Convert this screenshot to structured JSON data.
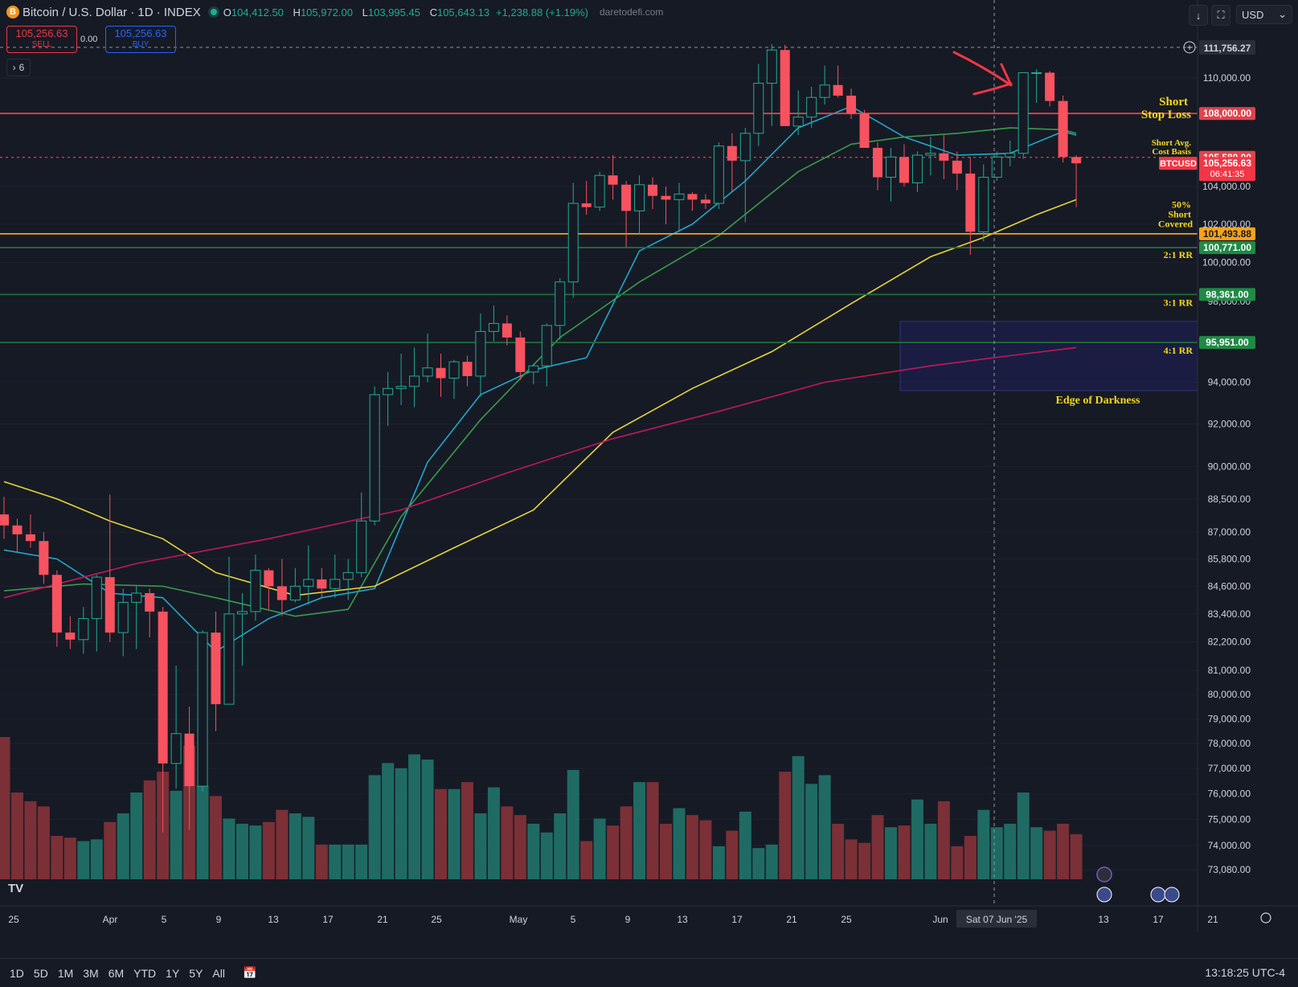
{
  "header": {
    "title": "Bitcoin / U.S. Dollar · 1D · INDEX",
    "coin_icon": "B",
    "open_label": "O",
    "open": "104,412.50",
    "high_label": "H",
    "high": "105,972.00",
    "low_label": "L",
    "low": "103,995.45",
    "close_label": "C",
    "close": "105,643.13",
    "change": "+1,238.88 (+1.19%)",
    "watermark": "daretodefi.com"
  },
  "trade": {
    "sell_price": "105,256.63",
    "sell_label": "SELL",
    "spread": "0.00",
    "buy_price": "105,256.63",
    "buy_label": "BUY"
  },
  "indicator_count": "6",
  "currency_select": "USD",
  "timeframes": [
    "1D",
    "5D",
    "1M",
    "3M",
    "6M",
    "YTD",
    "1Y",
    "5Y",
    "All"
  ],
  "clock": "13:18:25 UTC-4",
  "colors": {
    "bg": "#161a25",
    "up": "#22ab94",
    "down": "#f7525f",
    "ma_cyan": "#22a7c9",
    "ma_green": "#3a9a4d",
    "ma_yellow": "#e6d43c",
    "ma_magenta": "#c2185b",
    "level_red": "#e0434d",
    "level_orange": "#f7a21a",
    "level_green": "#1f6e3a",
    "annot": "#f5d820"
  },
  "chart_data": {
    "type": "candlestick",
    "title": "Bitcoin / U.S. Dollar · 1D · INDEX",
    "x_ticks": [
      "25",
      "Apr",
      "5",
      "9",
      "13",
      "17",
      "21",
      "25",
      "May",
      "5",
      "9",
      "13",
      "17",
      "21",
      "25",
      "Jun",
      "Sat 07 Jun '25",
      "13",
      "17",
      "21"
    ],
    "y_ticks": [
      110000,
      104000,
      102000,
      100000,
      98000,
      94000,
      92000,
      90000,
      88500,
      87000,
      85800,
      84600,
      83400,
      82200,
      81000,
      80000,
      79000,
      78000,
      77000,
      76000,
      75000,
      74000,
      73080
    ],
    "y_tick_labels": [
      "110,000.00",
      "104,000.00",
      "102,000.00",
      "100,000.00",
      "98,000.00",
      "94,000.00",
      "92,000.00",
      "90,000.00",
      "88,500.00",
      "87,000.00",
      "85,800.00",
      "84,600.00",
      "83,400.00",
      "82,200.00",
      "81,000.00",
      "80,000.00",
      "79,000.00",
      "78,000.00",
      "77,000.00",
      "76,000.00",
      "75,000.00",
      "74,000.00",
      "73,080.00"
    ],
    "log_scale": true,
    "start_date": "2025-03-25",
    "candles": [
      [
        87800,
        88600,
        86700,
        87300
      ],
      [
        87300,
        87600,
        86100,
        86900
      ],
      [
        86900,
        87800,
        86300,
        86600
      ],
      [
        86600,
        87000,
        84700,
        85100
      ],
      [
        85100,
        85300,
        82000,
        82600
      ],
      [
        82600,
        83300,
        81900,
        82300
      ],
      [
        82300,
        83700,
        81700,
        83200
      ],
      [
        83200,
        85100,
        81800,
        85000
      ],
      [
        85000,
        88700,
        82200,
        82600
      ],
      [
        82600,
        84500,
        81600,
        83900
      ],
      [
        83900,
        84600,
        81900,
        84300
      ],
      [
        84300,
        84500,
        82400,
        83500
      ],
      [
        83500,
        83700,
        74500,
        77200
      ],
      [
        77200,
        81200,
        76200,
        78400
      ],
      [
        78400,
        79500,
        74600,
        76300
      ],
      [
        76300,
        82700,
        76100,
        82600
      ],
      [
        82600,
        83500,
        78500,
        79600
      ],
      [
        79600,
        85900,
        79600,
        83400
      ],
      [
        83400,
        84300,
        81200,
        83500
      ],
      [
        83500,
        86000,
        83100,
        85300
      ],
      [
        85300,
        85400,
        83600,
        84600
      ],
      [
        84600,
        85800,
        83300,
        84000
      ],
      [
        84000,
        85400,
        83900,
        84600
      ],
      [
        84600,
        86400,
        83800,
        84900
      ],
      [
        84900,
        85400,
        84100,
        84500
      ],
      [
        84500,
        86000,
        84100,
        84900
      ],
      [
        84900,
        85800,
        84000,
        85200
      ],
      [
        85200,
        88800,
        85000,
        87500
      ],
      [
        87500,
        93800,
        87300,
        93400
      ],
      [
        93400,
        94500,
        91900,
        93700
      ],
      [
        93700,
        95400,
        92900,
        93800
      ],
      [
        93800,
        95700,
        92800,
        94300
      ],
      [
        94300,
        96400,
        94000,
        94700
      ],
      [
        94700,
        95400,
        93300,
        94200
      ],
      [
        94200,
        95100,
        93200,
        95000
      ],
      [
        95000,
        95300,
        93800,
        94300
      ],
      [
        94300,
        97400,
        93300,
        96500
      ],
      [
        96500,
        97800,
        96000,
        96900
      ],
      [
        96900,
        97300,
        95800,
        96200
      ],
      [
        96200,
        96500,
        94100,
        94500
      ],
      [
        94500,
        94900,
        93900,
        94800
      ],
      [
        94800,
        96900,
        93800,
        96800
      ],
      [
        96800,
        99200,
        96100,
        99000
      ],
      [
        99000,
        104200,
        98200,
        103100
      ],
      [
        103100,
        104300,
        102500,
        102900
      ],
      [
        102900,
        104800,
        102700,
        104600
      ],
      [
        104600,
        105700,
        103300,
        104100
      ],
      [
        104100,
        104300,
        100800,
        102700
      ],
      [
        102700,
        104600,
        101500,
        104100
      ],
      [
        104100,
        104500,
        102800,
        103500
      ],
      [
        103500,
        104000,
        102000,
        103300
      ],
      [
        103300,
        104200,
        101600,
        103600
      ],
      [
        103600,
        103700,
        102700,
        103300
      ],
      [
        103300,
        103600,
        102800,
        103100
      ],
      [
        103100,
        106400,
        102800,
        106200
      ],
      [
        106200,
        106900,
        103700,
        105400
      ],
      [
        105400,
        107200,
        102100,
        106900
      ],
      [
        106900,
        110800,
        106200,
        109700
      ],
      [
        109700,
        111950,
        107300,
        111600
      ],
      [
        111600,
        111900,
        107600,
        107300
      ],
      [
        107300,
        109300,
        106800,
        107800
      ],
      [
        107800,
        109500,
        107200,
        108900
      ],
      [
        108900,
        110700,
        108500,
        109600
      ],
      [
        109600,
        110700,
        108900,
        109000
      ],
      [
        109000,
        109400,
        107700,
        108000
      ],
      [
        108000,
        108200,
        106100,
        106100
      ],
      [
        106100,
        106400,
        103800,
        104500
      ],
      [
        104500,
        106100,
        103200,
        105600
      ],
      [
        105600,
        106300,
        104000,
        104200
      ],
      [
        104200,
        105900,
        103700,
        105700
      ],
      [
        105700,
        106700,
        104600,
        105800
      ],
      [
        105800,
        106800,
        104400,
        105400
      ],
      [
        105400,
        105900,
        103800,
        104700
      ],
      [
        104700,
        105600,
        100400,
        101600
      ],
      [
        101600,
        105200,
        101100,
        104500
      ],
      [
        104500,
        105900,
        104300,
        105600
      ],
      [
        105600,
        106500,
        105100,
        105800
      ],
      [
        105800,
        110300,
        105500,
        110300
      ],
      [
        110300,
        110500,
        108600,
        110300
      ],
      [
        110300,
        110400,
        108400,
        108700
      ],
      [
        108700,
        109000,
        105300,
        105600
      ],
      [
        105600,
        105700,
        102900,
        105256
      ]
    ],
    "volume": [
      82,
      50,
      45,
      42,
      25,
      24,
      22,
      23,
      33,
      38,
      50,
      57,
      62,
      51,
      77,
      54,
      48,
      35,
      32,
      31,
      33,
      40,
      38,
      36,
      20,
      20,
      20,
      20,
      60,
      67,
      64,
      72,
      69,
      52,
      52,
      56,
      38,
      53,
      42,
      37,
      32,
      27,
      38,
      63,
      22,
      35,
      31,
      42,
      56,
      56,
      32,
      41,
      37,
      34,
      19,
      28,
      39,
      18,
      20,
      62,
      71,
      55,
      60,
      32,
      23,
      21,
      37,
      30,
      31,
      46,
      32,
      45,
      19,
      25,
      40,
      30,
      32,
      50,
      30,
      28,
      32,
      26
    ],
    "moving_averages": [
      {
        "color": "#22a7c9",
        "values": [
          [
            0,
            86200
          ],
          [
            4,
            85800
          ],
          [
            8,
            84300
          ],
          [
            12,
            84100
          ],
          [
            16,
            81800
          ],
          [
            20,
            83200
          ],
          [
            24,
            84100
          ],
          [
            28,
            84500
          ],
          [
            32,
            90200
          ],
          [
            36,
            93400
          ],
          [
            40,
            94600
          ],
          [
            44,
            95200
          ],
          [
            48,
            100600
          ],
          [
            52,
            102000
          ],
          [
            56,
            104300
          ],
          [
            60,
            107200
          ],
          [
            64,
            108400
          ],
          [
            68,
            106700
          ],
          [
            72,
            105700
          ],
          [
            76,
            105800
          ],
          [
            80,
            107000
          ],
          [
            81,
            106800
          ]
        ]
      },
      {
        "color": "#3a9a4d",
        "values": [
          [
            0,
            84400
          ],
          [
            6,
            84700
          ],
          [
            12,
            84600
          ],
          [
            16,
            84100
          ],
          [
            22,
            83300
          ],
          [
            26,
            83600
          ],
          [
            30,
            87700
          ],
          [
            36,
            92200
          ],
          [
            42,
            96200
          ],
          [
            48,
            99000
          ],
          [
            54,
            101400
          ],
          [
            60,
            104800
          ],
          [
            64,
            106300
          ],
          [
            68,
            106700
          ],
          [
            72,
            106900
          ],
          [
            76,
            107200
          ],
          [
            80,
            107100
          ],
          [
            81,
            106900
          ]
        ]
      },
      {
        "color": "#e6d43c",
        "values": [
          [
            0,
            89300
          ],
          [
            4,
            88500
          ],
          [
            8,
            87500
          ],
          [
            12,
            86700
          ],
          [
            16,
            85200
          ],
          [
            22,
            84200
          ],
          [
            28,
            84600
          ],
          [
            34,
            86300
          ],
          [
            40,
            88000
          ],
          [
            46,
            91600
          ],
          [
            52,
            93700
          ],
          [
            58,
            95500
          ],
          [
            64,
            97900
          ],
          [
            70,
            100300
          ],
          [
            74,
            101300
          ],
          [
            78,
            102500
          ],
          [
            81,
            103300
          ]
        ]
      },
      {
        "color": "#c2185b",
        "values": [
          [
            0,
            84100
          ],
          [
            10,
            85600
          ],
          [
            20,
            86700
          ],
          [
            30,
            88000
          ],
          [
            38,
            89700
          ],
          [
            46,
            91300
          ],
          [
            54,
            92600
          ],
          [
            62,
            94000
          ],
          [
            70,
            94800
          ],
          [
            76,
            95300
          ],
          [
            81,
            95700
          ]
        ]
      }
    ],
    "levels": [
      {
        "value": 111756.27,
        "label": "111,756.27",
        "color": "#787b86"
      },
      {
        "value": 108000,
        "label": "108,000.00",
        "color": "#e0434d"
      },
      {
        "value": 105580,
        "label": "105,580.00",
        "color": "#e0434d"
      },
      {
        "value": 101493.88,
        "label": "101,493.88",
        "color": "#f7a21a"
      },
      {
        "value": 100771,
        "label": "100,771.00",
        "color": "#1f6e3a"
      },
      {
        "value": 98361,
        "label": "98,361.00",
        "color": "#1f6e3a"
      },
      {
        "value": 95951,
        "label": "95,951.00",
        "color": "#1f6e3a"
      }
    ],
    "last_price": {
      "ticker": "BTCUSD",
      "value": "105,256.63",
      "countdown": "06:41:35"
    },
    "annotations": [
      "Short",
      "Stop Loss",
      "Short Avg.",
      "Cost Basis",
      "50%",
      "Short",
      "Covered",
      "2:1 RR",
      "3:1 RR",
      "4:1 RR",
      "Edge of Darkness"
    ],
    "zone": {
      "from_value": 93600,
      "to_value": 97000,
      "label": "Edge of Darkness"
    }
  }
}
